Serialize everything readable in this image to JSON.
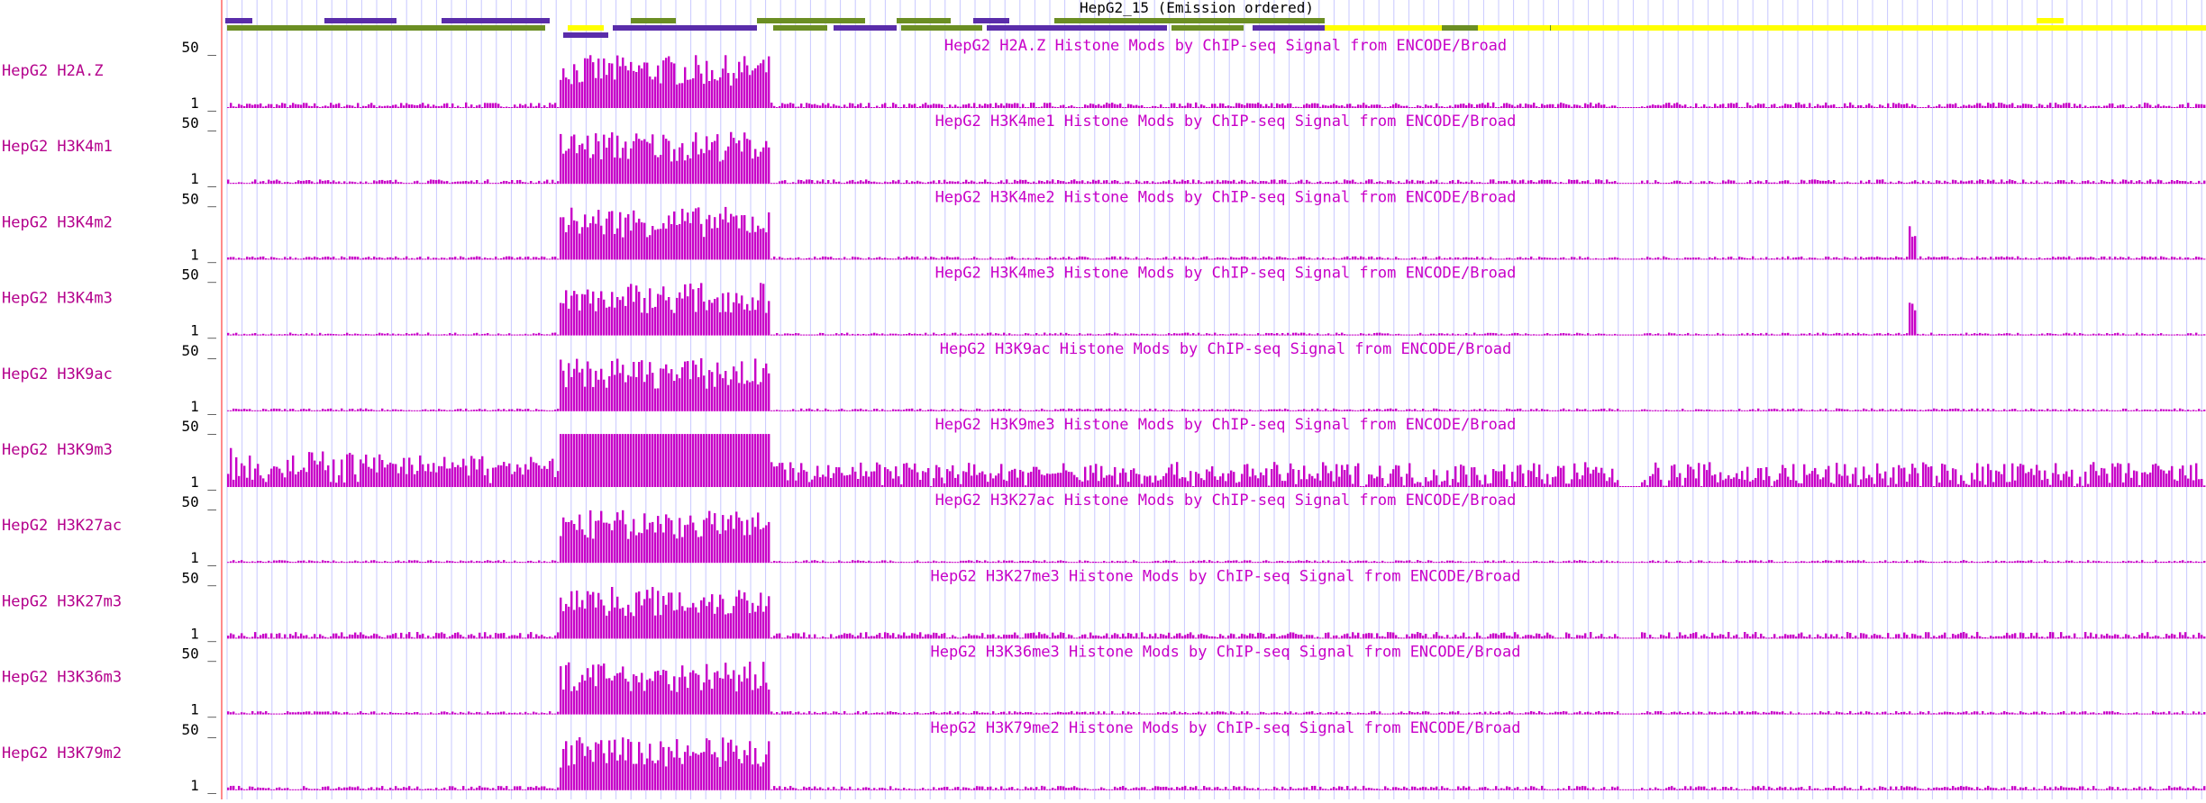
{
  "browser": {
    "hmm_label": "HepG2_15 (Emission ordered)",
    "scale_max": "50 _",
    "scale_min": "1 _",
    "signal_color": "#c800c8",
    "label_color": "#b4008c",
    "guide_color": "#c8c8ff",
    "border_color": "#ff6464",
    "hmm_colors": {
      "green": "#6b8e23",
      "purple": "#5a2daa",
      "yellow": "#ffff00"
    }
  },
  "chart_data": {
    "type": "area",
    "title": "",
    "ylim": [
      1,
      50
    ],
    "tracks": [
      {
        "name": "HepG2 H2A.Z",
        "title": "HepG2 H2A.Z Histone Mods by ChIP-seq Signal from ENCODE/Broad",
        "level": 0.1,
        "peaks": []
      },
      {
        "name": "HepG2 H3K4m1",
        "title": "HepG2 H3K4me1 Histone Mods by ChIP-seq Signal from ENCODE/Broad",
        "level": 0.08,
        "peaks": []
      },
      {
        "name": "HepG2 H3K4m2",
        "title": "HepG2 H3K4me2 Histone Mods by ChIP-seq Signal from ENCODE/Broad",
        "level": 0.06,
        "peaks": [
          0.4
        ]
      },
      {
        "name": "HepG2 H3K4m3",
        "title": "HepG2 H3K4me3 Histone Mods by ChIP-seq Signal from ENCODE/Broad",
        "level": 0.05,
        "peaks": [
          0.4
        ]
      },
      {
        "name": "HepG2 H3K9ac",
        "title": "HepG2 H3K9ac Histone Mods by ChIP-seq Signal from ENCODE/Broad",
        "level": 0.05,
        "peaks": []
      },
      {
        "name": "HepG2 H3K9m3",
        "title": "HepG2 H3K9me3 Histone Mods by ChIP-seq Signal from ENCODE/Broad",
        "level": 0.45,
        "peaks": []
      },
      {
        "name": "HepG2 H3K27ac",
        "title": "HepG2 H3K27ac Histone Mods by ChIP-seq Signal from ENCODE/Broad",
        "level": 0.05,
        "peaks": []
      },
      {
        "name": "HepG2 H3K27m3",
        "title": "HepG2 H3K27me3 Histone Mods by ChIP-seq Signal from ENCODE/Broad",
        "level": 0.12,
        "peaks": []
      },
      {
        "name": "HepG2 H3K36m3",
        "title": "HepG2 H3K36me3 Histone Mods by ChIP-seq Signal from ENCODE/Broad",
        "level": 0.06,
        "peaks": []
      },
      {
        "name": "HepG2 H3K79m2",
        "title": "HepG2 H3K79me2 Histone Mods by ChIP-seq Signal from ENCODE/Broad",
        "level": 0.08,
        "peaks": []
      }
    ]
  }
}
